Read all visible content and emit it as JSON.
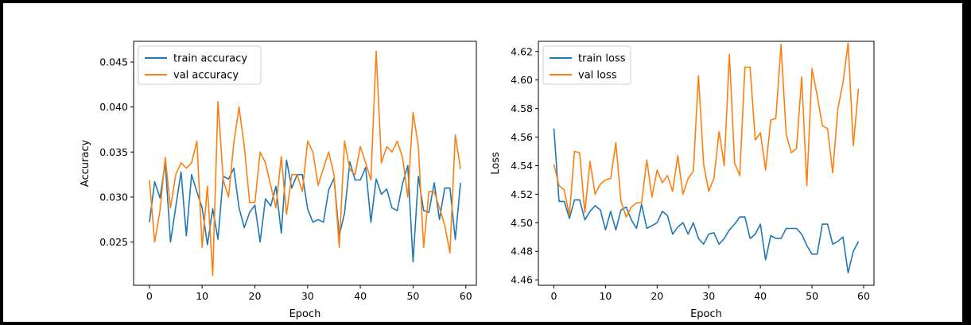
{
  "colors": {
    "train": "#1f77b4",
    "val": "#ff7f0e",
    "frame": "#000000",
    "background": "#ffffff",
    "outer_border": "#000000"
  },
  "chart_data": [
    {
      "type": "line",
      "title": "",
      "xlabel": "Epoch",
      "ylabel": "Accuracy",
      "xlim": [
        -3,
        62
      ],
      "ylim": [
        0.0202,
        0.0473
      ],
      "xticks": [
        0,
        10,
        20,
        30,
        40,
        50,
        60
      ],
      "xtick_labels": [
        "0",
        "10",
        "20",
        "30",
        "40",
        "50",
        "60"
      ],
      "yticks": [
        0.025,
        0.03,
        0.035,
        0.04,
        0.045
      ],
      "ytick_labels": [
        "0.025",
        "0.030",
        "0.035",
        "0.040",
        "0.045"
      ],
      "legend": "upper-left",
      "grid": false,
      "series": [
        {
          "name": "train accuracy",
          "color": "#1f77b4",
          "x": [
            0,
            1,
            2,
            3,
            4,
            5,
            6,
            7,
            8,
            9,
            10,
            11,
            12,
            13,
            14,
            15,
            16,
            17,
            18,
            19,
            20,
            21,
            22,
            23,
            24,
            25,
            26,
            27,
            28,
            29,
            30,
            31,
            32,
            33,
            34,
            35,
            36,
            37,
            38,
            39,
            40,
            41,
            42,
            43,
            44,
            45,
            46,
            47,
            48,
            49,
            50,
            51,
            52,
            53,
            54,
            55,
            56,
            57,
            58,
            59
          ],
          "values": [
            0.0272,
            0.0317,
            0.0299,
            0.0338,
            0.025,
            0.0289,
            0.0328,
            0.0257,
            0.0325,
            0.0306,
            0.0288,
            0.0247,
            0.0287,
            0.0253,
            0.0323,
            0.032,
            0.0332,
            0.0288,
            0.0266,
            0.0283,
            0.0291,
            0.025,
            0.0298,
            0.029,
            0.0312,
            0.026,
            0.0341,
            0.031,
            0.0325,
            0.0325,
            0.0287,
            0.0272,
            0.0275,
            0.0272,
            0.0308,
            0.0321,
            0.0257,
            0.0282,
            0.0339,
            0.0319,
            0.0319,
            0.0333,
            0.0272,
            0.032,
            0.0303,
            0.0309,
            0.0288,
            0.0285,
            0.0315,
            0.0335,
            0.0228,
            0.0323,
            0.0285,
            0.0283,
            0.0316,
            0.0275,
            0.031,
            0.031,
            0.0253,
            0.0316
          ]
        },
        {
          "name": "val accuracy",
          "color": "#ff7f0e",
          "x": [
            0,
            1,
            2,
            3,
            4,
            5,
            6,
            7,
            8,
            9,
            10,
            11,
            12,
            13,
            14,
            15,
            16,
            17,
            18,
            19,
            20,
            21,
            22,
            23,
            24,
            25,
            26,
            27,
            28,
            29,
            30,
            31,
            32,
            33,
            34,
            35,
            36,
            37,
            38,
            39,
            40,
            41,
            42,
            43,
            44,
            45,
            46,
            47,
            48,
            49,
            50,
            51,
            52,
            53,
            54,
            55,
            56,
            57,
            58,
            59
          ],
          "values": [
            0.0319,
            0.025,
            0.0285,
            0.0344,
            0.0288,
            0.0325,
            0.0338,
            0.0332,
            0.0338,
            0.0362,
            0.0244,
            0.0312,
            0.0213,
            0.0406,
            0.0319,
            0.03,
            0.036,
            0.04,
            0.0356,
            0.0294,
            0.0294,
            0.035,
            0.0338,
            0.0313,
            0.0288,
            0.0345,
            0.0281,
            0.0325,
            0.0325,
            0.0306,
            0.0362,
            0.035,
            0.0313,
            0.0332,
            0.035,
            0.0325,
            0.0244,
            0.0362,
            0.0331,
            0.0325,
            0.0356,
            0.0338,
            0.0319,
            0.0462,
            0.0338,
            0.0356,
            0.035,
            0.0362,
            0.0344,
            0.03,
            0.0394,
            0.0356,
            0.0244,
            0.0306,
            0.0306,
            0.0288,
            0.0269,
            0.0238,
            0.0369,
            0.0331
          ]
        }
      ]
    },
    {
      "type": "line",
      "title": "",
      "xlabel": "Epoch",
      "ylabel": "Loss",
      "xlim": [
        -3,
        62
      ],
      "ylim": [
        4.4562,
        4.6271
      ],
      "xticks": [
        0,
        10,
        20,
        30,
        40,
        50,
        60
      ],
      "xtick_labels": [
        "0",
        "10",
        "20",
        "30",
        "40",
        "50",
        "60"
      ],
      "yticks": [
        4.46,
        4.48,
        4.5,
        4.52,
        4.54,
        4.56,
        4.58,
        4.6,
        4.62
      ],
      "ytick_labels": [
        "4.46",
        "4.48",
        "4.50",
        "4.52",
        "4.54",
        "4.56",
        "4.58",
        "4.60",
        "4.62"
      ],
      "legend": "upper-left",
      "grid": false,
      "series": [
        {
          "name": "train loss",
          "color": "#1f77b4",
          "x": [
            0,
            1,
            2,
            3,
            4,
            5,
            6,
            7,
            8,
            9,
            10,
            11,
            12,
            13,
            14,
            15,
            16,
            17,
            18,
            19,
            20,
            21,
            22,
            23,
            24,
            25,
            26,
            27,
            28,
            29,
            30,
            31,
            32,
            33,
            34,
            35,
            36,
            37,
            38,
            39,
            40,
            41,
            42,
            43,
            44,
            45,
            46,
            47,
            48,
            49,
            50,
            51,
            52,
            53,
            54,
            55,
            56,
            57,
            58,
            59
          ],
          "values": [
            4.566,
            4.515,
            4.515,
            4.503,
            4.516,
            4.516,
            4.502,
            4.508,
            4.512,
            4.509,
            4.495,
            4.508,
            4.495,
            4.509,
            4.511,
            4.502,
            4.496,
            4.513,
            4.496,
            4.498,
            4.5,
            4.508,
            4.505,
            4.492,
            4.497,
            4.5,
            4.492,
            4.5,
            4.489,
            4.485,
            4.492,
            4.493,
            4.485,
            4.489,
            4.495,
            4.499,
            4.504,
            4.504,
            4.489,
            4.492,
            4.499,
            4.474,
            4.491,
            4.489,
            4.489,
            4.496,
            4.496,
            4.496,
            4.492,
            4.484,
            4.478,
            4.478,
            4.499,
            4.499,
            4.485,
            4.487,
            4.49,
            4.465,
            4.48,
            4.487
          ]
        },
        {
          "name": "val loss",
          "color": "#ff7f0e",
          "x": [
            0,
            1,
            2,
            3,
            4,
            5,
            6,
            7,
            8,
            9,
            10,
            11,
            12,
            13,
            14,
            15,
            16,
            17,
            18,
            19,
            20,
            21,
            22,
            23,
            24,
            25,
            26,
            27,
            28,
            29,
            30,
            31,
            32,
            33,
            34,
            35,
            36,
            37,
            38,
            39,
            40,
            41,
            42,
            43,
            44,
            45,
            46,
            47,
            48,
            49,
            50,
            51,
            52,
            53,
            54,
            55,
            56,
            57,
            58,
            59
          ],
          "values": [
            4.541,
            4.526,
            4.523,
            4.505,
            4.55,
            4.549,
            4.507,
            4.543,
            4.52,
            4.527,
            4.53,
            4.531,
            4.556,
            4.515,
            4.504,
            4.511,
            4.514,
            4.514,
            4.544,
            4.518,
            4.537,
            4.528,
            4.533,
            4.522,
            4.547,
            4.52,
            4.531,
            4.536,
            4.603,
            4.541,
            4.522,
            4.531,
            4.564,
            4.54,
            4.618,
            4.542,
            4.533,
            4.609,
            4.609,
            4.558,
            4.563,
            4.537,
            4.572,
            4.573,
            4.625,
            4.562,
            4.549,
            4.552,
            4.602,
            4.526,
            4.608,
            4.589,
            4.568,
            4.566,
            4.535,
            4.58,
            4.598,
            4.626,
            4.554,
            4.594
          ]
        }
      ]
    }
  ]
}
